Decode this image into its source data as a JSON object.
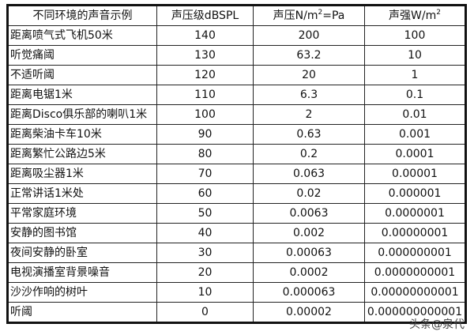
{
  "table": {
    "headers": {
      "example": "不同环境的声音示例",
      "spl": "声压级dBSPL",
      "pressure_prefix": "声压N/m",
      "pressure_sup": "2",
      "pressure_suffix": "=Pa",
      "intensity_prefix": "声强W/m",
      "intensity_sup": "2"
    },
    "rows": [
      [
        "距离喷气式飞机50米",
        "140",
        "200",
        "100"
      ],
      [
        "听觉痛阈",
        "130",
        "63.2",
        "10"
      ],
      [
        "不适听阈",
        "120",
        "20",
        "1"
      ],
      [
        "距离电锯1米",
        "110",
        "6.3",
        "0.1"
      ],
      [
        "距离Disco俱乐部的喇叭1米",
        "100",
        "2",
        "0.01"
      ],
      [
        "距离柴油卡车10米",
        "90",
        "0.63",
        "0.001"
      ],
      [
        "距离繁忙公路边5米",
        "80",
        "0.2",
        "0.0001"
      ],
      [
        "距离吸尘器1米",
        "70",
        "0.063",
        "0.00001"
      ],
      [
        "正常讲话1米处",
        "60",
        "0.02",
        "0.000001"
      ],
      [
        "平常家庭环境",
        "50",
        "0.0063",
        "0.0000001"
      ],
      [
        "安静的图书馆",
        "40",
        "0.002",
        "0.00000001"
      ],
      [
        "夜间安静的卧室",
        "30",
        "0.00063",
        "0.000000001"
      ],
      [
        "电视演播室背景噪音",
        "20",
        "0.0002",
        "0.0000000001"
      ],
      [
        "沙沙作响的树叶",
        "10",
        "0.000063",
        "0.00000000001"
      ],
      [
        "听阈",
        "0",
        "0.00002",
        "0.000000000001"
      ]
    ]
  },
  "watermark": "头条@泉代"
}
